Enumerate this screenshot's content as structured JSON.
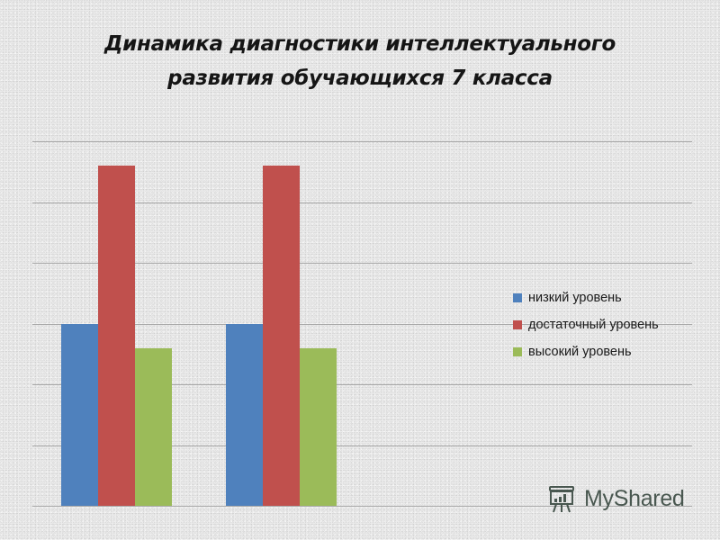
{
  "title": {
    "line1": "Динамика диагностики интеллектуального",
    "line2": "развития обучающихся 7 класса"
  },
  "legend": {
    "items": [
      {
        "label": "низкий уровень",
        "color": "#4f81bd"
      },
      {
        "label": "достаточный уровень",
        "color": "#c0504d"
      },
      {
        "label": "высокий уровень",
        "color": "#9bbb59"
      }
    ]
  },
  "watermark": {
    "text": "MyShared",
    "icon": "presentation-board-icon"
  },
  "chart_data": {
    "type": "bar",
    "title": "Динамика диагностики интеллектуального развития обучающихся 7 класса",
    "xlabel": "",
    "ylabel": "",
    "categories": [
      "",
      ""
    ],
    "series": [
      {
        "name": "низкий уровень",
        "color": "#4f81bd",
        "values": [
          3.0,
          3.0
        ]
      },
      {
        "name": "достаточный уровень",
        "color": "#c0504d",
        "values": [
          5.6,
          5.6
        ]
      },
      {
        "name": "высокий уровень",
        "color": "#9bbb59",
        "values": [
          2.6,
          2.6
        ]
      }
    ],
    "ylim": [
      0,
      6
    ],
    "gridlines": 6,
    "grid": true,
    "axis_tick_labels_visible": false,
    "legend_position": "right"
  }
}
